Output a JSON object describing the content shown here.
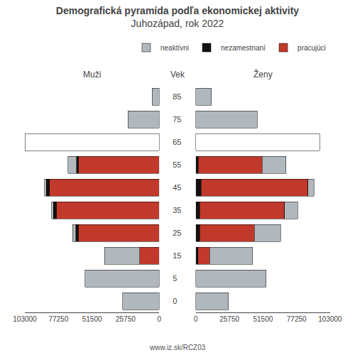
{
  "chart_data": [
    {
      "type": "bar",
      "title": "Demografická pyramída podľa ekonomickej aktivity",
      "subtitle": "Juhozápad, rok 2022",
      "xlabel": "Muži",
      "ylabel": "Vek",
      "annotations": [
        "www.iz.sk/RCZ03"
      ],
      "orientation": "horizontal",
      "stacked": true,
      "grid": false,
      "legend": "upper right",
      "categories": [
        "0",
        "5",
        "15",
        "25",
        "35",
        "45",
        "55",
        "65",
        "75",
        "85"
      ],
      "series": [
        {
          "name": "pracujúci",
          "color": "#c0392b",
          "values": [
            0,
            0,
            15000,
            62000,
            79000,
            84000,
            62000,
            0,
            0,
            0
          ]
        },
        {
          "name": "nezamestnaní",
          "color": "#111111",
          "values": [
            0,
            0,
            0,
            2000,
            2000,
            2500,
            1500,
            0,
            0,
            0
          ]
        },
        {
          "name": "neaktívni",
          "colors": [
            "#b0b8be",
            "#b0b8be",
            "#b0b8be",
            "#b0b8be",
            "#b0b8be",
            "#b0b8be",
            "#b0b8be",
            "#ffffff",
            "#b0b8be",
            "#b0b8be"
          ],
          "values": [
            28000,
            57000,
            27000,
            2500,
            1500,
            1500,
            6500,
            103000,
            24000,
            5500
          ]
        }
      ],
      "xlim": [
        103000,
        0
      ],
      "xticks": [
        0,
        25750,
        51500,
        77250,
        103000
      ]
    },
    {
      "type": "bar",
      "xlabel": "Ženy",
      "orientation": "horizontal",
      "stacked": true,
      "grid": false,
      "categories": [
        "0",
        "5",
        "15",
        "25",
        "35",
        "45",
        "55",
        "65",
        "75",
        "85"
      ],
      "series": [
        {
          "name": "nezamestnaní",
          "color": "#111111",
          "values": [
            0,
            0,
            1500,
            3000,
            3000,
            4000,
            2000,
            0,
            0,
            0
          ]
        },
        {
          "name": "pracujúci",
          "color": "#c0392b",
          "values": [
            0,
            0,
            9000,
            42000,
            65000,
            82000,
            49000,
            0,
            0,
            0
          ]
        },
        {
          "name": "neaktívni",
          "colors": [
            "#b0b8be",
            "#b0b8be",
            "#b0b8be",
            "#b0b8be",
            "#b0b8be",
            "#b0b8be",
            "#b0b8be",
            "#ffffff",
            "#b0b8be",
            "#b0b8be"
          ],
          "values": [
            25000,
            54000,
            33000,
            20000,
            10000,
            4500,
            18000,
            95000,
            47000,
            12000
          ]
        }
      ],
      "xlim": [
        0,
        103000
      ],
      "xticks": [
        0,
        25750,
        51500,
        77250,
        103000
      ]
    }
  ]
}
